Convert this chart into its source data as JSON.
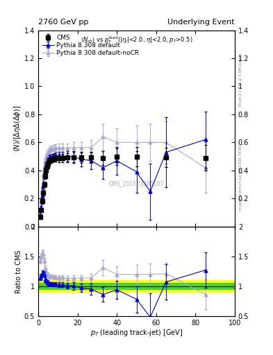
{
  "title_left": "2760 GeV pp",
  "title_right": "Underlying Event",
  "ylabel_main": "$\\langle N\\rangle/[\\Delta\\eta\\Delta(\\Delta\\phi)]$",
  "ylabel_ratio": "Ratio to CMS",
  "xlabel": "$p_T$ (leading track-jet) [GeV]",
  "watermark": "CMS_2015_I1385107",
  "cms_x": [
    1.0,
    1.5,
    2.0,
    2.5,
    3.0,
    3.5,
    4.0,
    4.5,
    5.0,
    5.5,
    6.0,
    7.0,
    8.0,
    9.0,
    10.5,
    12.5,
    15.0,
    18.0,
    22.0,
    27.0,
    33.0,
    40.0,
    50.0,
    65.0,
    85.0
  ],
  "cms_y": [
    0.07,
    0.12,
    0.18,
    0.24,
    0.3,
    0.36,
    0.4,
    0.43,
    0.45,
    0.47,
    0.475,
    0.48,
    0.487,
    0.49,
    0.49,
    0.49,
    0.495,
    0.495,
    0.495,
    0.495,
    0.49,
    0.5,
    0.5,
    0.495,
    0.49
  ],
  "cms_yerr": [
    0.01,
    0.01,
    0.02,
    0.02,
    0.02,
    0.02,
    0.02,
    0.02,
    0.02,
    0.02,
    0.02,
    0.02,
    0.025,
    0.025,
    0.03,
    0.03,
    0.03,
    0.04,
    0.04,
    0.04,
    0.05,
    0.06,
    0.07,
    0.07,
    0.09
  ],
  "py_def_x": [
    1.0,
    1.5,
    2.0,
    2.5,
    3.0,
    3.5,
    4.0,
    4.5,
    5.0,
    5.5,
    6.0,
    7.0,
    8.0,
    9.0,
    10.5,
    12.5,
    15.0,
    18.0,
    22.0,
    27.0,
    33.0,
    40.0,
    50.0,
    57.0,
    65.0,
    85.0
  ],
  "py_def_y": [
    0.08,
    0.14,
    0.22,
    0.29,
    0.36,
    0.4,
    0.44,
    0.46,
    0.475,
    0.487,
    0.493,
    0.5,
    0.502,
    0.504,
    0.503,
    0.502,
    0.5,
    0.497,
    0.48,
    0.47,
    0.42,
    0.47,
    0.39,
    0.25,
    0.53,
    0.62
  ],
  "py_def_yerr": [
    0.01,
    0.01,
    0.015,
    0.02,
    0.02,
    0.02,
    0.02,
    0.02,
    0.02,
    0.02,
    0.02,
    0.02,
    0.02,
    0.025,
    0.03,
    0.03,
    0.04,
    0.04,
    0.05,
    0.06,
    0.08,
    0.1,
    0.15,
    0.2,
    0.25,
    0.2
  ],
  "py_nocr_x": [
    1.0,
    1.5,
    2.0,
    2.5,
    3.0,
    3.5,
    4.0,
    4.5,
    5.0,
    5.5,
    6.0,
    7.0,
    8.0,
    9.0,
    10.5,
    12.5,
    15.0,
    18.0,
    22.0,
    27.0,
    33.0,
    40.0,
    50.0,
    57.0,
    65.0,
    85.0
  ],
  "py_nocr_y": [
    0.1,
    0.18,
    0.28,
    0.37,
    0.43,
    0.47,
    0.5,
    0.52,
    0.535,
    0.545,
    0.553,
    0.557,
    0.56,
    0.562,
    0.562,
    0.562,
    0.56,
    0.562,
    0.562,
    0.565,
    0.64,
    0.6,
    0.6,
    0.6,
    0.6,
    0.42
  ],
  "py_nocr_yerr": [
    0.01,
    0.01,
    0.015,
    0.02,
    0.02,
    0.02,
    0.02,
    0.02,
    0.02,
    0.02,
    0.02,
    0.02,
    0.02,
    0.025,
    0.03,
    0.03,
    0.03,
    0.04,
    0.04,
    0.05,
    0.09,
    0.1,
    0.12,
    0.13,
    0.15,
    0.18
  ],
  "ratio_py_def_x": [
    1.0,
    1.5,
    2.0,
    2.5,
    3.0,
    3.5,
    4.0,
    4.5,
    5.0,
    5.5,
    6.0,
    7.0,
    8.0,
    9.0,
    10.5,
    12.5,
    15.0,
    18.0,
    22.0,
    27.0,
    33.0,
    40.0,
    50.0,
    57.0,
    65.0,
    85.0
  ],
  "ratio_py_def_y": [
    1.14,
    1.17,
    1.22,
    1.21,
    1.2,
    1.11,
    1.1,
    1.07,
    1.056,
    1.036,
    1.038,
    1.04,
    1.03,
    1.029,
    1.026,
    1.024,
    1.01,
    1.004,
    0.97,
    0.95,
    0.86,
    0.94,
    0.78,
    0.48,
    1.07,
    1.27
  ],
  "ratio_py_def_yerr": [
    0.04,
    0.04,
    0.04,
    0.04,
    0.04,
    0.04,
    0.03,
    0.03,
    0.03,
    0.03,
    0.03,
    0.03,
    0.03,
    0.035,
    0.04,
    0.04,
    0.05,
    0.06,
    0.07,
    0.09,
    0.12,
    0.15,
    0.22,
    0.4,
    0.3,
    0.3
  ],
  "ratio_py_nocr_x": [
    1.0,
    1.5,
    2.0,
    2.5,
    3.0,
    3.5,
    4.0,
    4.5,
    5.0,
    5.5,
    6.0,
    7.0,
    8.0,
    9.0,
    10.5,
    12.5,
    15.0,
    18.0,
    22.0,
    27.0,
    33.0,
    40.0,
    50.0,
    57.0,
    65.0,
    85.0
  ],
  "ratio_py_nocr_y": [
    1.43,
    1.5,
    1.56,
    1.54,
    1.43,
    1.31,
    1.25,
    1.21,
    1.19,
    1.16,
    1.164,
    1.16,
    1.15,
    1.147,
    1.147,
    1.147,
    1.13,
    1.135,
    1.135,
    1.14,
    1.31,
    1.2,
    1.2,
    1.2,
    1.21,
    0.86
  ],
  "ratio_py_nocr_yerr": [
    0.05,
    0.05,
    0.05,
    0.05,
    0.04,
    0.04,
    0.04,
    0.03,
    0.03,
    0.03,
    0.03,
    0.03,
    0.03,
    0.035,
    0.04,
    0.04,
    0.04,
    0.05,
    0.05,
    0.07,
    0.13,
    0.14,
    0.16,
    0.18,
    0.18,
    0.25
  ],
  "cms_color": "#000000",
  "py_def_color": "#0000cc",
  "py_nocr_color": "#aaaacc",
  "green_band": 0.05,
  "yellow_band": 0.1,
  "ylim_main": [
    0.0,
    1.4
  ],
  "ylim_ratio": [
    0.5,
    2.0
  ],
  "xlim": [
    0,
    100
  ]
}
